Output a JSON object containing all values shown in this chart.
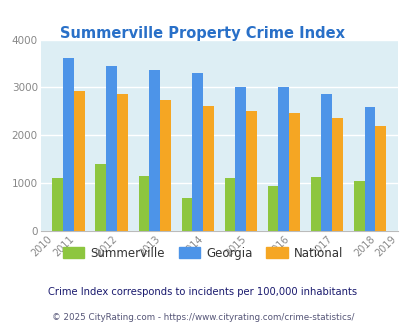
{
  "title": "Summerville Property Crime Index",
  "title_color": "#2970c8",
  "years": [
    "2010",
    "2011",
    "2012",
    "2013",
    "2014",
    "2015",
    "2016",
    "2017",
    "2018",
    "2019"
  ],
  "plot_years": [
    2011,
    2012,
    2013,
    2014,
    2015,
    2016,
    2017,
    2018
  ],
  "summerville": [
    1100,
    1400,
    1150,
    680,
    1100,
    950,
    1120,
    1050
  ],
  "georgia": [
    3620,
    3440,
    3360,
    3310,
    3010,
    3010,
    2870,
    2590
  ],
  "national": [
    2920,
    2870,
    2740,
    2610,
    2500,
    2460,
    2370,
    2190
  ],
  "summerville_color": "#8dc63f",
  "georgia_color": "#4d94e8",
  "national_color": "#f5a623",
  "bg_color": "#ddeef4",
  "ylim": [
    0,
    4000
  ],
  "yticks": [
    0,
    1000,
    2000,
    3000,
    4000
  ],
  "bar_width": 0.25,
  "footnote1": "Crime Index corresponds to incidents per 100,000 inhabitants",
  "footnote2": "© 2025 CityRating.com - https://www.cityrating.com/crime-statistics/",
  "footnote1_color": "#1a1a6e",
  "footnote2_color": "#555577",
  "grid_color": "#ffffff",
  "legend_labels": [
    "Summerville",
    "Georgia",
    "National"
  ]
}
